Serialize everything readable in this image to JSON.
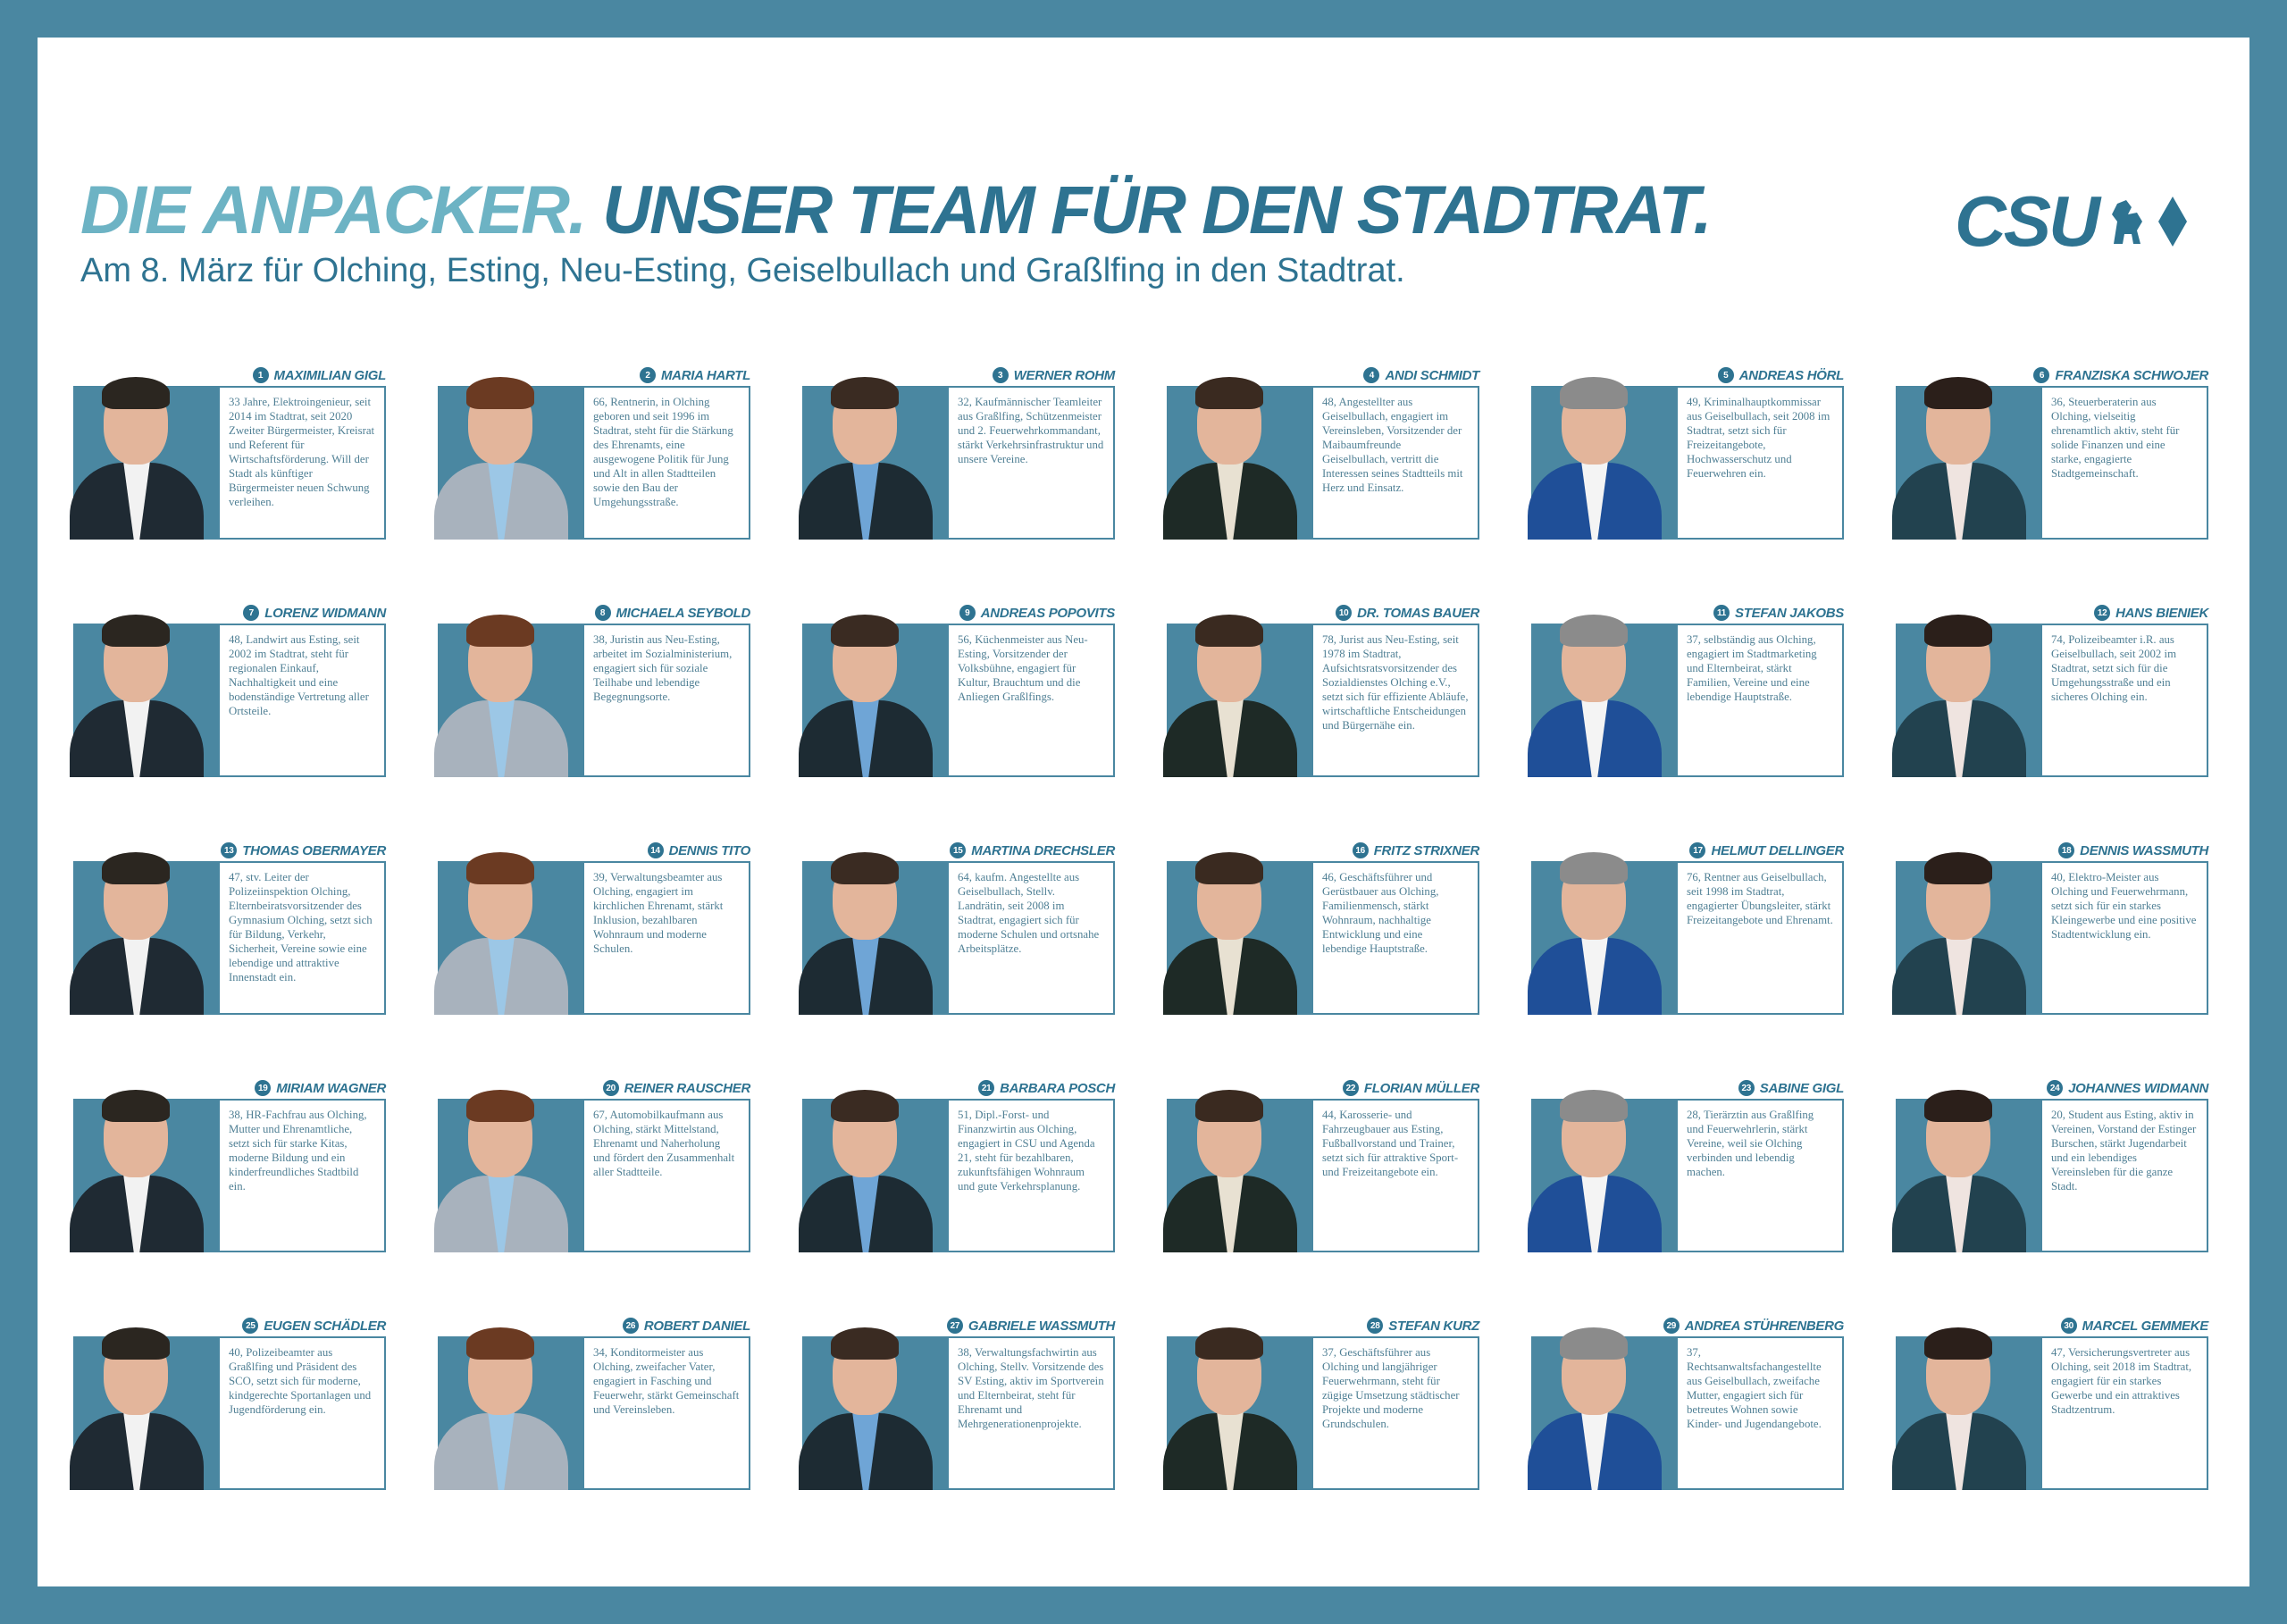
{
  "header": {
    "title_part1": "DIE ANPACKER.",
    "title_part2": "UNSER TEAM FÜR DEN STADTRAT.",
    "subtitle": "Am 8. März für Olching, Esting, Neu-Esting, Geiselbullach und Graßlfing in den Stadtrat.",
    "logo_text": "CSU",
    "logo_icons": [
      "lion-icon",
      "diamond-icon"
    ]
  },
  "colors": {
    "frame": "#4a87a1",
    "title_light": "#6db3c4",
    "title_dark": "#2e7391"
  },
  "members": [
    {
      "number": "1",
      "name": "MAXIMILIAN GIGL",
      "bio": "33 Jahre, Elektroingenieur, seit 2014 im Stadtrat, seit 2020 Zweiter Bürgermeister, Kreisrat und Referent für Wirtschaftsförderung. Will der Stadt als künftiger Bürgermeister neuen Schwung verleihen."
    },
    {
      "number": "2",
      "name": "MARIA HARTL",
      "bio": "66, Rentnerin, in Olching geboren und seit 1996 im Stadtrat, steht für die Stärkung des Ehrenamts, eine ausgewogene Politik für Jung und Alt in allen Stadtteilen sowie den Bau der Umgehungsstraße."
    },
    {
      "number": "3",
      "name": "WERNER ROHM",
      "bio": "32, Kaufmännischer Teamleiter aus Graßlfing, Schützenmeister und 2. Feuerwehrkommandant, stärkt Verkehrsinfrastruktur und unsere Vereine."
    },
    {
      "number": "4",
      "name": "ANDI SCHMIDT",
      "bio": "48, Angestellter aus Geiselbullach, engagiert im Vereinsleben, Vorsitzender der Maibaumfreunde Geiselbullach, vertritt die Interessen seines Stadtteils mit Herz und Einsatz."
    },
    {
      "number": "5",
      "name": "ANDREAS HÖRL",
      "bio": "49, Kriminalhauptkommissar aus Geiselbullach, seit 2008 im Stadtrat, setzt sich für Freizeitangebote, Hochwasserschutz und Feuerwehren ein."
    },
    {
      "number": "6",
      "name": "FRANZISKA SCHWOJER",
      "bio": "36, Steuerberaterin aus Olching, vielseitig ehrenamtlich aktiv, steht für solide Finanzen und eine starke, engagierte Stadtgemeinschaft."
    },
    {
      "number": "7",
      "name": "LORENZ WIDMANN",
      "bio": "48, Landwirt aus Esting, seit 2002 im Stadtrat, steht für regionalen Einkauf, Nachhaltigkeit und eine bodenständige Vertretung aller Ortsteile."
    },
    {
      "number": "8",
      "name": "MICHAELA SEYBOLD",
      "bio": "38, Juristin aus Neu-Esting, arbeitet im Sozialministerium, engagiert sich für soziale Teilhabe und lebendige Begegnungsorte."
    },
    {
      "number": "9",
      "name": "ANDREAS POPOVITS",
      "bio": "56, Küchenmeister aus Neu-Esting, Vorsitzender der Volksbühne, engagiert für Kultur, Brauchtum und die Anliegen Graßlfings."
    },
    {
      "number": "10",
      "name": "DR. TOMAS BAUER",
      "bio": "78, Jurist aus Neu-Esting, seit 1978 im Stadtrat, Aufsichtsratsvorsitzender des Sozialdienstes Olching e.V., setzt sich für effiziente Abläufe, wirtschaftliche Entscheidungen und Bürgernähe ein."
    },
    {
      "number": "11",
      "name": "STEFAN JAKOBS",
      "bio": "37, selbständig aus Olching, engagiert im Stadtmarketing und Elternbeirat, stärkt Familien, Vereine und eine lebendige Hauptstraße."
    },
    {
      "number": "12",
      "name": "HANS BIENIEK",
      "bio": "74, Polizeibeamter i.R. aus Geiselbullach, seit 2002 im Stadtrat, setzt sich für die Umgehungsstraße und ein sicheres Olching ein."
    },
    {
      "number": "13",
      "name": "THOMAS OBERMAYER",
      "bio": "47, stv. Leiter der Polizeiinspektion Olching, Elternbeiratsvorsitzender des Gymnasium Olching, setzt sich für Bildung, Verkehr, Sicherheit, Vereine sowie eine lebendige und attraktive Innenstadt ein."
    },
    {
      "number": "14",
      "name": "DENNIS TITO",
      "bio": "39, Verwaltungsbeamter aus Olching, engagiert im kirchlichen Ehrenamt, stärkt Inklusion, bezahlbaren Wohnraum und moderne Schulen."
    },
    {
      "number": "15",
      "name": "MARTINA DRECHSLER",
      "bio": "64, kaufm. Angestellte aus Geiselbullach, Stellv. Landrätin, seit 2008 im Stadtrat, engagiert sich für moderne Schulen und ortsnahe Arbeitsplätze."
    },
    {
      "number": "16",
      "name": "FRITZ STRIXNER",
      "bio": "46, Geschäftsführer und Gerüstbauer aus Olching, Familienmensch, stärkt Wohnraum, nachhaltige Entwicklung und eine lebendige Hauptstraße."
    },
    {
      "number": "17",
      "name": "HELMUT DELLINGER",
      "bio": "76, Rentner aus Geiselbullach, seit 1998 im Stadtrat, engagierter Übungsleiter, stärkt Freizeitangebote und Ehrenamt."
    },
    {
      "number": "18",
      "name": "DENNIS WASSMUTH",
      "bio": "40, Elektro-Meister aus Olching und Feuerwehrmann, setzt sich für ein starkes Kleingewerbe und eine positive Stadtentwicklung ein."
    },
    {
      "number": "19",
      "name": "MIRIAM WAGNER",
      "bio": "38, HR-Fachfrau aus Olching, Mutter und Ehrenamtliche, setzt sich für starke Kitas, moderne Bildung und ein kinderfreundliches Stadtbild ein."
    },
    {
      "number": "20",
      "name": "REINER RAUSCHER",
      "bio": "67, Automobilkaufmann aus Olching, stärkt Mittelstand, Ehrenamt und Naherholung und fördert den Zusammenhalt aller Stadtteile."
    },
    {
      "number": "21",
      "name": "BARBARA POSCH",
      "bio": "51, Dipl.-Forst- und Finanzwirtin aus Olching, engagiert in CSU und Agenda 21, steht für bezahlbaren, zukunftsfähigen Wohnraum und gute Verkehrsplanung."
    },
    {
      "number": "22",
      "name": "FLORIAN MÜLLER",
      "bio": "44, Karosserie- und Fahrzeugbauer aus Esting, Fußballvorstand und Trainer, setzt sich für attraktive Sport- und Freizeitangebote ein."
    },
    {
      "number": "23",
      "name": "SABINE GIGL",
      "bio": "28, Tierärztin aus Graßlfing und Feuerwehrlerin, stärkt Vereine, weil sie Olching verbinden und lebendig machen."
    },
    {
      "number": "24",
      "name": "JOHANNES WIDMANN",
      "bio": "20, Student aus Esting, aktiv in Vereinen, Vorstand der Estinger Burschen, stärkt Jugendarbeit und ein lebendiges Vereinsleben für die ganze Stadt."
    },
    {
      "number": "25",
      "name": "EUGEN SCHÄDLER",
      "bio": "40, Polizeibeamter aus Graßlfing und Präsident des SCO, setzt sich für moderne, kindgerechte Sportanlagen und Jugendförderung ein."
    },
    {
      "number": "26",
      "name": "ROBERT DANIEL",
      "bio": "34, Konditormeister aus Olching, zweifacher Vater, engagiert in Fasching und Feuerwehr, stärkt Gemeinschaft und Vereinsleben."
    },
    {
      "number": "27",
      "name": "GABRIELE WASSMUTH",
      "bio": "38, Verwaltungsfachwirtin aus Olching, Stellv. Vorsitzende des SV Esting, aktiv im Sportverein und Elternbeirat, steht für Ehrenamt und Mehrgenerationenprojekte."
    },
    {
      "number": "28",
      "name": "STEFAN KURZ",
      "bio": "37, Geschäftsführer aus Olching und langjähriger Feuerwehrmann, steht für zügige Umsetzung städtischer Projekte und moderne Grundschulen."
    },
    {
      "number": "29",
      "name": "ANDREA STÜHRENBERG",
      "bio": "37, Rechtsanwaltsfachangestellte aus Geiselbullach, zweifache Mutter, engagiert sich für betreutes Wohnen sowie Kinder- und Jugendangebote."
    },
    {
      "number": "30",
      "name": "MARCEL GEMMEKE",
      "bio": "47, Versicherungsvertreter aus Olching, seit 2018 im Stadtrat, engagiert für ein starkes Gewerbe und ein attraktives Stadtzentrum."
    }
  ]
}
